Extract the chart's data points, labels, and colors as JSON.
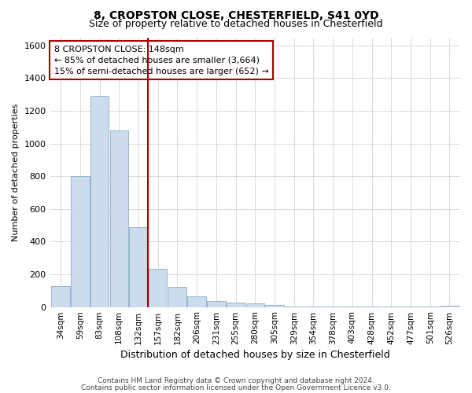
{
  "title1": "8, CROPSTON CLOSE, CHESTERFIELD, S41 0YD",
  "title2": "Size of property relative to detached houses in Chesterfield",
  "xlabel": "Distribution of detached houses by size in Chesterfield",
  "ylabel": "Number of detached properties",
  "categories": [
    "34sqm",
    "59sqm",
    "83sqm",
    "108sqm",
    "132sqm",
    "157sqm",
    "182sqm",
    "206sqm",
    "231sqm",
    "255sqm",
    "280sqm",
    "305sqm",
    "329sqm",
    "354sqm",
    "378sqm",
    "403sqm",
    "428sqm",
    "452sqm",
    "477sqm",
    "501sqm",
    "526sqm"
  ],
  "values": [
    130,
    800,
    1290,
    1080,
    490,
    235,
    125,
    65,
    35,
    25,
    20,
    10,
    5,
    5,
    5,
    3,
    3,
    3,
    5,
    3,
    8
  ],
  "bar_color": "#ccdcec",
  "bar_edgecolor": "#8ab0cc",
  "vline_x_index": 4.5,
  "vline_color": "#aa0000",
  "ylim": [
    0,
    1650
  ],
  "yticks": [
    0,
    200,
    400,
    600,
    800,
    1000,
    1200,
    1400,
    1600
  ],
  "annotation_text": "8 CROPSTON CLOSE: 148sqm\n← 85% of detached houses are smaller (3,664)\n15% of semi-detached houses are larger (652) →",
  "annotation_box_color": "#ffffff",
  "annotation_box_edgecolor": "#aa0000",
  "footer1": "Contains HM Land Registry data © Crown copyright and database right 2024.",
  "footer2": "Contains public sector information licensed under the Open Government Licence v3.0.",
  "bg_color": "#ffffff",
  "grid_color": "#cccccc"
}
